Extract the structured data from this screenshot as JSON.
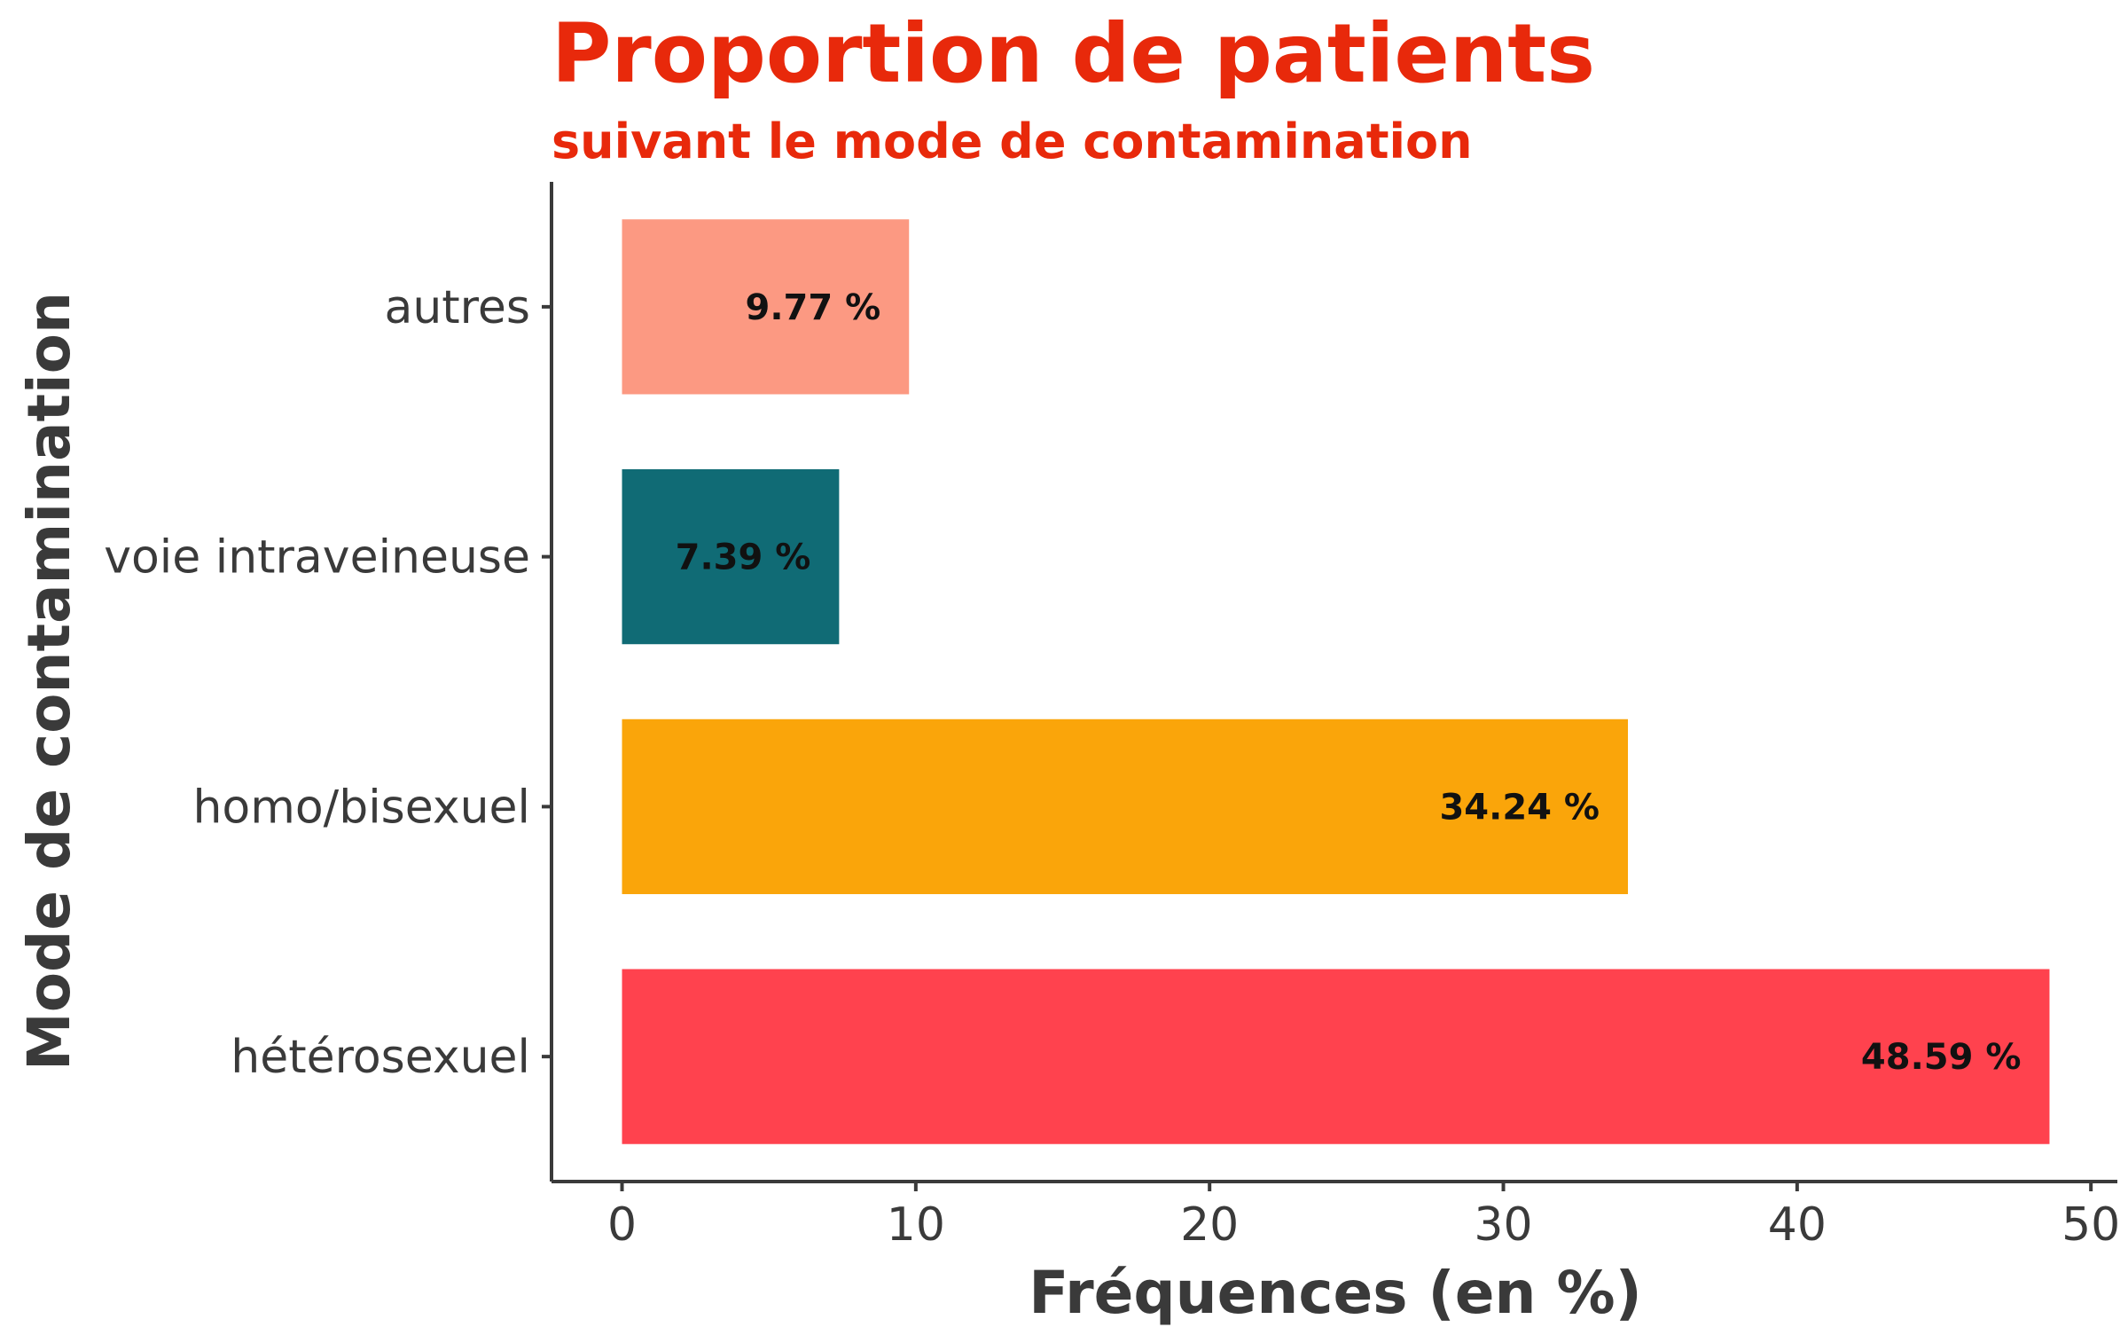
{
  "chart_data": {
    "type": "bar",
    "orientation": "horizontal",
    "title": "Proportion de patients",
    "subtitle": "suivant le mode de contamination",
    "xlabel": "Fréquences (en %)",
    "ylabel": "Mode de contamination",
    "categories": [
      "autres",
      "voie intraveineuse",
      "homo/bisexuel",
      "hétérosexuel"
    ],
    "values": [
      9.77,
      7.39,
      34.24,
      48.59
    ],
    "data_labels": [
      "9.77 %",
      "7.39 %",
      "34.24 %",
      "48.59 %"
    ],
    "bar_colors": [
      "#FC9982",
      "#106B75",
      "#FAA50A",
      "#FF424E"
    ],
    "xlim": [
      -2.4,
      50.9
    ],
    "xticks": [
      0,
      10,
      20,
      30,
      40,
      50
    ],
    "grid": false,
    "legend": "none"
  },
  "colors": {
    "title": "#E8290B",
    "axis": "#3A3A3A",
    "tick_text": "#3A3A3A",
    "label_text": "#111111"
  }
}
